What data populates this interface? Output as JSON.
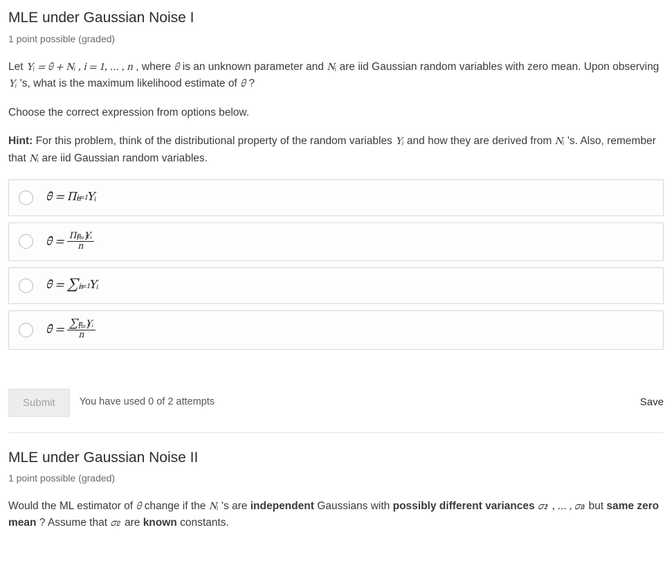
{
  "problem1": {
    "title": "MLE under Gaussian Noise I",
    "points_line": "1 point possible (graded)",
    "para_let": "Let ",
    "eq_main": "Yᵢ = θ + Nᵢ , i = 1, … , n",
    "para_where": ", where ",
    "theta": "θ",
    "para_unknown": " is an unknown parameter and ",
    "Ni": "Nᵢ",
    "para_gauss": " are iid Gaussian random variables with zero mean. Upon observing ",
    "Yi": "Yᵢ",
    "para_obs": "'s, what is the maximum likelihood estimate of ",
    "para_q": "?",
    "choose_line": "Choose the correct expression from options below.",
    "hint_label": "Hint:",
    "hint_1": " For this problem, think of the distributional property of the random variables ",
    "hint_2": " and how they are derived from ",
    "hint_3": "'s. Also, remember that ",
    "hint_4": " are iid Gaussian random variables.",
    "options": {
      "opt1_prefix": "θ̂ = Π",
      "opt1_yi": " Yᵢ",
      "opt2_prefix": "θ̂ = ",
      "opt2_num_pi": "Π",
      "opt2_num_yi": " Yᵢ",
      "opt2_den": "n",
      "opt3_prefix": "θ̂ = ∑",
      "opt3_yi": " Yᵢ",
      "opt4_prefix": "θ̂ = ",
      "opt4_num_sigma": "∑",
      "opt4_num_yi": " Yᵢ",
      "opt4_den": "n",
      "limits_sup": "n",
      "limits_sub": "i=1"
    },
    "submit_label": "Submit",
    "attempts_text": "You have used 0 of 2 attempts",
    "save_label": "Save"
  },
  "problem2": {
    "title": "MLE under Gaussian Noise II",
    "points_line": "1 point possible (graded)",
    "para_a": "Would the ML estimator of ",
    "theta": "θ",
    "para_b": " change if the ",
    "Ni": "Nᵢ",
    "para_c": "'s are ",
    "bold_indep": "independent",
    "para_d": " Gaussians with ",
    "bold_var": "possibly different variances ",
    "var_seq_a": "σ",
    "var_seq_mid": ", … , ",
    "para_e": " but ",
    "bold_mean": "same zero mean",
    "para_f": "? Assume that ",
    "sigma_i": "σ",
    "para_g": " are ",
    "bold_known": "known",
    "para_h": " constants.",
    "sup2": "2",
    "sub1": "1",
    "subn": "n",
    "subi": "i"
  }
}
